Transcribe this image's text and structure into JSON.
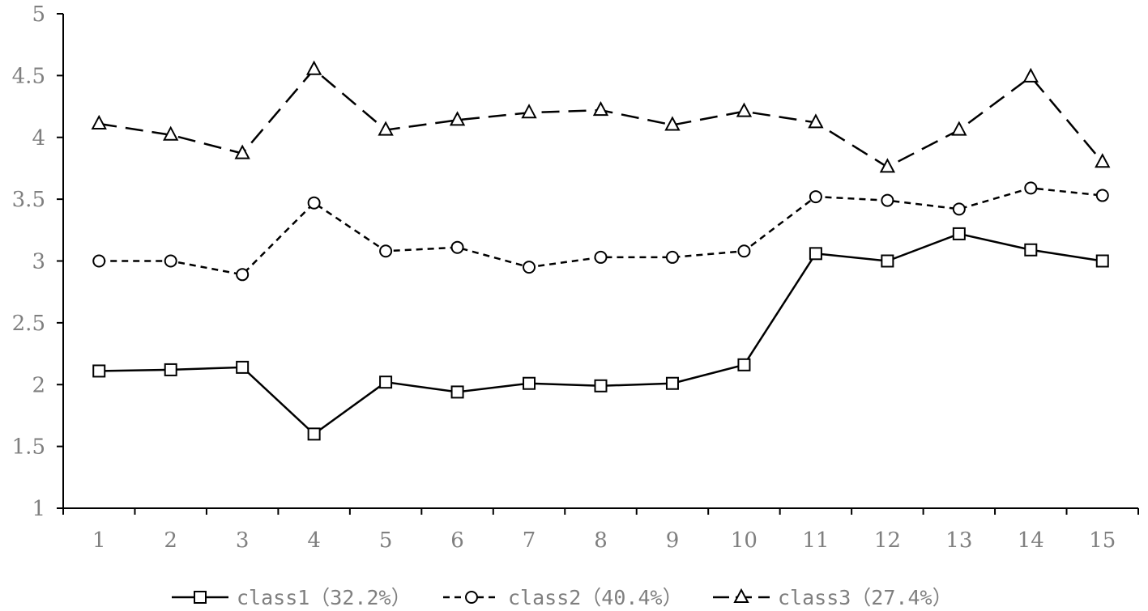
{
  "chart_data": {
    "type": "line",
    "title": "",
    "xlabel": "",
    "ylabel": "",
    "categories": [
      "1",
      "2",
      "3",
      "4",
      "5",
      "6",
      "7",
      "8",
      "9",
      "10",
      "11",
      "12",
      "13",
      "14",
      "15"
    ],
    "ylim": [
      1,
      5
    ],
    "yticks": [
      "1",
      "1.5",
      "2",
      "2.5",
      "3",
      "3.5",
      "4",
      "4.5",
      "5"
    ],
    "grid": false,
    "legend_position": "bottom",
    "series": [
      {
        "name": "class1（32.2%）",
        "marker": "square",
        "line_style": "solid",
        "color": "#000000",
        "values": [
          2.11,
          2.12,
          2.14,
          1.6,
          2.02,
          1.94,
          2.01,
          1.99,
          2.01,
          2.16,
          3.06,
          3.0,
          3.22,
          3.09,
          3.0
        ]
      },
      {
        "name": "class2（40.4%）",
        "marker": "circle",
        "line_style": "short-dash",
        "color": "#000000",
        "values": [
          3.0,
          3.0,
          2.89,
          3.47,
          3.08,
          3.11,
          2.95,
          3.03,
          3.03,
          3.08,
          3.52,
          3.49,
          3.42,
          3.59,
          3.53
        ]
      },
      {
        "name": "class3（27.4%）",
        "marker": "triangle",
        "line_style": "long-dash",
        "color": "#000000",
        "values": [
          4.11,
          4.02,
          3.87,
          4.55,
          4.06,
          4.14,
          4.2,
          4.22,
          4.1,
          4.21,
          4.12,
          3.76,
          4.06,
          4.49,
          3.8
        ]
      }
    ]
  }
}
